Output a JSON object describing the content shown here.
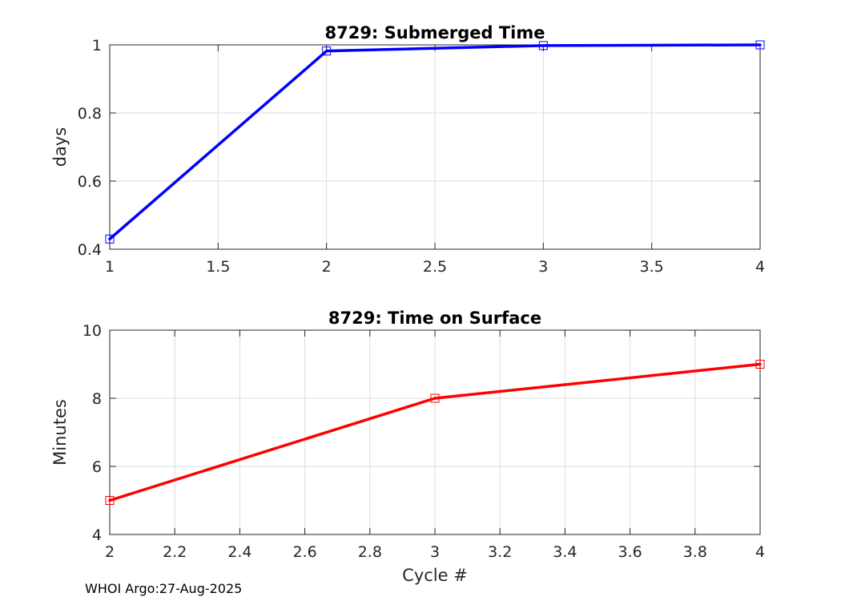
{
  "chart_data": [
    {
      "type": "line",
      "title": "8729: Submerged Time",
      "xlabel": "",
      "ylabel": "days",
      "xlim": [
        1,
        4
      ],
      "ylim": [
        0.4,
        1
      ],
      "xticks": [
        1,
        1.5,
        2,
        2.5,
        3,
        3.5,
        4
      ],
      "xtick_labels": [
        "1",
        "1.5",
        "2",
        "2.5",
        "3",
        "3.5",
        "4"
      ],
      "yticks": [
        0.4,
        0.6,
        0.8,
        1
      ],
      "ytick_labels": [
        "0.4",
        "0.6",
        "0.8",
        "1"
      ],
      "grid": true,
      "series": [
        {
          "name": "Submerged Time",
          "color": "#0000ff",
          "marker": "square",
          "x": [
            1,
            2,
            3,
            4
          ],
          "y": [
            0.43,
            0.982,
            0.998,
            1.0
          ]
        }
      ]
    },
    {
      "type": "line",
      "title": "8729: Time on Surface",
      "xlabel": "Cycle #",
      "ylabel": "Minutes",
      "xlim": [
        2,
        4
      ],
      "ylim": [
        4,
        10
      ],
      "xticks": [
        2,
        2.2,
        2.4,
        2.6,
        2.8,
        3,
        3.2,
        3.4,
        3.6,
        3.8,
        4
      ],
      "xtick_labels": [
        "2",
        "2.2",
        "2.4",
        "2.6",
        "2.8",
        "3",
        "3.2",
        "3.4",
        "3.6",
        "3.8",
        "4"
      ],
      "yticks": [
        4,
        6,
        8,
        10
      ],
      "ytick_labels": [
        "4",
        "6",
        "8",
        "10"
      ],
      "grid": true,
      "series": [
        {
          "name": "Time on Surface",
          "color": "#ff0000",
          "marker": "square",
          "x": [
            2,
            3,
            4
          ],
          "y": [
            5,
            8,
            9
          ]
        }
      ]
    }
  ],
  "footer": "WHOI Argo:27-Aug-2025"
}
